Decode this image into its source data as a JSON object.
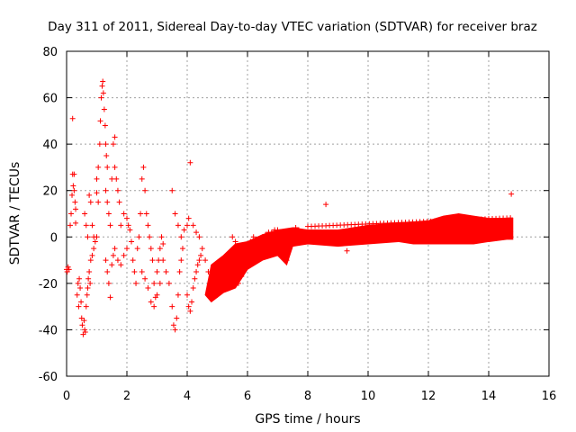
{
  "chart_data": {
    "type": "scatter",
    "title": "Day 311 of 2011, Sidereal Day-to-day VTEC variation (SDTVAR) for receiver braz",
    "xlabel": "GPS time / hours",
    "ylabel": "SDTVAR / TECUs",
    "xlim": [
      0,
      16
    ],
    "ylim": [
      -60,
      80
    ],
    "xticks": [
      0,
      2,
      4,
      6,
      8,
      10,
      12,
      14,
      16
    ],
    "yticks": [
      -60,
      -40,
      -20,
      0,
      20,
      40,
      60,
      80
    ],
    "xtick_labels": [
      "0",
      "2",
      "4",
      "6",
      "8",
      "10",
      "12",
      "14",
      "16"
    ],
    "ytick_labels": [
      "-60",
      "-40",
      "-20",
      "0",
      "20",
      "40",
      "60",
      "80"
    ],
    "grid": true,
    "marker": "+",
    "color": "#ff0000",
    "series": [
      {
        "name": "SDTVAR",
        "points": [
          [
            0.0,
            -14
          ],
          [
            0.02,
            -15
          ],
          [
            0.05,
            -13
          ],
          [
            0.08,
            -14
          ],
          [
            0.12,
            5
          ],
          [
            0.15,
            10
          ],
          [
            0.18,
            18
          ],
          [
            0.2,
            27
          ],
          [
            0.22,
            22
          ],
          [
            0.25,
            20
          ],
          [
            0.28,
            15
          ],
          [
            0.2,
            51
          ],
          [
            0.25,
            27
          ],
          [
            0.3,
            12
          ],
          [
            0.3,
            6
          ],
          [
            0.35,
            -25
          ],
          [
            0.38,
            -20
          ],
          [
            0.4,
            -30
          ],
          [
            0.42,
            -18
          ],
          [
            0.45,
            -22
          ],
          [
            0.48,
            -28
          ],
          [
            0.5,
            -35
          ],
          [
            0.52,
            -38
          ],
          [
            0.55,
            -42
          ],
          [
            0.58,
            -36
          ],
          [
            0.6,
            -40
          ],
          [
            0.62,
            -41
          ],
          [
            0.65,
            -30
          ],
          [
            0.68,
            -25
          ],
          [
            0.7,
            -22
          ],
          [
            0.72,
            -18
          ],
          [
            0.75,
            -15
          ],
          [
            0.78,
            -20
          ],
          [
            0.6,
            10
          ],
          [
            0.65,
            5
          ],
          [
            0.7,
            0
          ],
          [
            0.75,
            18
          ],
          [
            0.8,
            15
          ],
          [
            0.85,
            5
          ],
          [
            0.9,
            0
          ],
          [
            0.8,
            -10
          ],
          [
            0.85,
            -8
          ],
          [
            0.9,
            -5
          ],
          [
            0.95,
            -2
          ],
          [
            1.0,
            0
          ],
          [
            1.0,
            19
          ],
          [
            1.05,
            15
          ],
          [
            1.0,
            25
          ],
          [
            1.05,
            30
          ],
          [
            1.1,
            40
          ],
          [
            1.12,
            50
          ],
          [
            1.15,
            60
          ],
          [
            1.18,
            65
          ],
          [
            1.2,
            67
          ],
          [
            1.22,
            62
          ],
          [
            1.25,
            55
          ],
          [
            1.28,
            48
          ],
          [
            1.3,
            40
          ],
          [
            1.32,
            35
          ],
          [
            1.35,
            30
          ],
          [
            1.3,
            20
          ],
          [
            1.35,
            15
          ],
          [
            1.4,
            10
          ],
          [
            1.45,
            5
          ],
          [
            1.5,
            25
          ],
          [
            1.55,
            40
          ],
          [
            1.6,
            43
          ],
          [
            1.6,
            30
          ],
          [
            1.65,
            25
          ],
          [
            1.7,
            20
          ],
          [
            1.75,
            15
          ],
          [
            1.3,
            -10
          ],
          [
            1.35,
            -15
          ],
          [
            1.4,
            -20
          ],
          [
            1.45,
            -26
          ],
          [
            1.5,
            -12
          ],
          [
            1.55,
            -8
          ],
          [
            1.6,
            -5
          ],
          [
            1.7,
            -10
          ],
          [
            1.8,
            -12
          ],
          [
            1.9,
            -8
          ],
          [
            2.0,
            -5
          ],
          [
            1.8,
            5
          ],
          [
            1.9,
            10
          ],
          [
            2.0,
            8
          ],
          [
            2.05,
            5
          ],
          [
            2.1,
            3
          ],
          [
            2.15,
            -2
          ],
          [
            2.2,
            -10
          ],
          [
            2.25,
            -15
          ],
          [
            2.3,
            -20
          ],
          [
            2.35,
            -5
          ],
          [
            2.4,
            0
          ],
          [
            2.45,
            10
          ],
          [
            2.5,
            25
          ],
          [
            2.55,
            30
          ],
          [
            2.6,
            20
          ],
          [
            2.65,
            10
          ],
          [
            2.7,
            5
          ],
          [
            2.75,
            0
          ],
          [
            2.8,
            -5
          ],
          [
            2.85,
            -10
          ],
          [
            2.9,
            -20
          ],
          [
            2.95,
            -26
          ],
          [
            3.0,
            -15
          ],
          [
            3.05,
            -10
          ],
          [
            3.1,
            -5
          ],
          [
            3.15,
            0
          ],
          [
            3.2,
            -3
          ],
          [
            2.5,
            -15
          ],
          [
            2.6,
            -18
          ],
          [
            2.7,
            -22
          ],
          [
            2.8,
            -28
          ],
          [
            2.9,
            -30
          ],
          [
            3.0,
            -25
          ],
          [
            3.1,
            -20
          ],
          [
            3.2,
            -10
          ],
          [
            3.3,
            -15
          ],
          [
            3.4,
            -20
          ],
          [
            3.5,
            -30
          ],
          [
            3.55,
            -38
          ],
          [
            3.6,
            -40
          ],
          [
            3.65,
            -35
          ],
          [
            3.7,
            -25
          ],
          [
            3.75,
            -15
          ],
          [
            3.8,
            -10
          ],
          [
            3.85,
            -5
          ],
          [
            3.5,
            20
          ],
          [
            3.6,
            10
          ],
          [
            3.7,
            5
          ],
          [
            3.8,
            0
          ],
          [
            3.9,
            3
          ],
          [
            4.0,
            5
          ],
          [
            4.05,
            8
          ],
          [
            4.1,
            32
          ],
          [
            4.0,
            -25
          ],
          [
            4.05,
            -30
          ],
          [
            4.1,
            -32
          ],
          [
            4.15,
            -28
          ],
          [
            4.2,
            -22
          ],
          [
            4.25,
            -18
          ],
          [
            4.3,
            -15
          ],
          [
            4.35,
            -12
          ],
          [
            4.4,
            -10
          ],
          [
            4.45,
            -8
          ],
          [
            4.2,
            5
          ],
          [
            4.3,
            2
          ],
          [
            4.4,
            0
          ],
          [
            4.5,
            -5
          ],
          [
            4.6,
            -10
          ],
          [
            4.7,
            -15
          ],
          [
            4.8,
            -18
          ],
          [
            4.9,
            -20
          ],
          [
            5.0,
            -25
          ],
          [
            5.1,
            -22
          ],
          [
            5.2,
            -20
          ],
          [
            5.3,
            -18
          ],
          [
            5.4,
            -16
          ],
          [
            5.5,
            -15
          ],
          [
            5.6,
            -18
          ],
          [
            5.7,
            -20
          ],
          [
            5.8,
            -17
          ],
          [
            5.9,
            -10
          ],
          [
            6.0,
            -8
          ],
          [
            5.5,
            0
          ],
          [
            5.6,
            -2
          ],
          [
            5.7,
            -4
          ],
          [
            5.8,
            -6
          ],
          [
            5.9,
            -5
          ],
          [
            6.0,
            -4
          ],
          [
            6.1,
            -2
          ],
          [
            6.2,
            0
          ],
          [
            6.3,
            -3
          ],
          [
            6.4,
            -2
          ],
          [
            6.5,
            0
          ],
          [
            6.6,
            1
          ],
          [
            6.7,
            2
          ],
          [
            6.8,
            2
          ],
          [
            6.9,
            3
          ],
          [
            7.0,
            3
          ],
          [
            7.1,
            2
          ],
          [
            7.2,
            -3
          ],
          [
            7.3,
            -10
          ],
          [
            7.4,
            -5
          ],
          [
            7.5,
            3
          ],
          [
            7.6,
            4
          ],
          [
            7.7,
            3
          ],
          [
            7.8,
            2
          ],
          [
            7.9,
            2
          ],
          [
            8.0,
            1
          ]
        ]
      }
    ]
  }
}
